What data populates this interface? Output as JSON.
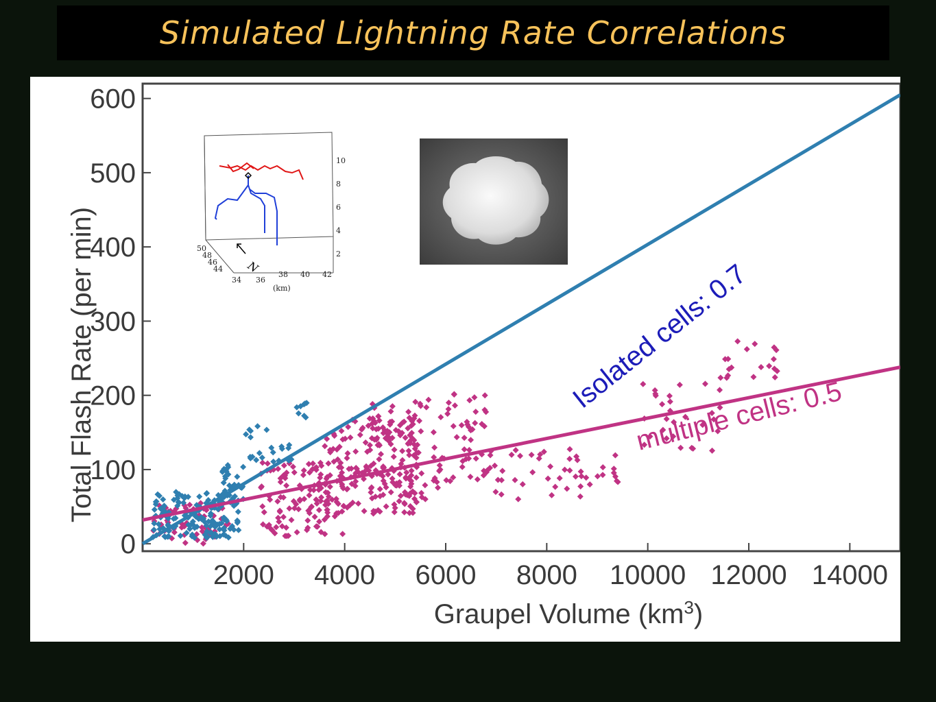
{
  "slide": {
    "title": "Simulated Lightning Rate Correlations"
  },
  "chart_data": {
    "type": "scatter",
    "title": "",
    "xlabel": "Graupel Volume (km",
    "xlabel_sup": "3",
    "xlabel_end": ")",
    "ylabel": "Total Flash Rate (per min)",
    "xlim": [
      0,
      15000
    ],
    "ylim": [
      -10,
      620
    ],
    "x_ticks": [
      "2000",
      "4000",
      "6000",
      "8000",
      "10000",
      "12000",
      "14000"
    ],
    "y_ticks": [
      "0",
      "100",
      "200",
      "300",
      "400",
      "500",
      "600"
    ],
    "grid": false,
    "series": [
      {
        "name": "Isolated cells",
        "color": "#2f7fb0",
        "fit_label": "Isolated cells: 0.7",
        "fit_label_color": "#1c1cb8",
        "fit_line": [
          [
            0,
            0
          ],
          [
            15000,
            605
          ]
        ],
        "clusters": [
          {
            "x": [
              200,
              1900
            ],
            "y": [
              8,
              70
            ],
            "n": 160
          },
          {
            "x": [
              1500,
              2000
            ],
            "y": [
              60,
              110
            ],
            "n": 30
          },
          {
            "x": [
              2000,
              3000
            ],
            "y": [
              110,
              160
            ],
            "n": 22
          },
          {
            "x": [
              3000,
              3300
            ],
            "y": [
              170,
              190
            ],
            "n": 8
          }
        ]
      },
      {
        "name": "Multiple cells",
        "color": "#c03384",
        "fit_label": "multiple cells: 0.5",
        "fit_label_color": "#c03384",
        "fit_line": [
          [
            0,
            32
          ],
          [
            15000,
            238
          ]
        ],
        "clusters": [
          {
            "x": [
              200,
              1700
            ],
            "y": [
              0,
              55
            ],
            "n": 60
          },
          {
            "x": [
              2300,
              4000
            ],
            "y": [
              10,
              110
            ],
            "n": 120
          },
          {
            "x": [
              3500,
              5500
            ],
            "y": [
              40,
              170
            ],
            "n": 170
          },
          {
            "x": [
              4500,
              6000
            ],
            "y": [
              60,
              200
            ],
            "n": 90
          },
          {
            "x": [
              6000,
              6800
            ],
            "y": [
              80,
              205
            ],
            "n": 40
          },
          {
            "x": [
              6800,
              9600
            ],
            "y": [
              60,
              130
            ],
            "n": 50
          },
          {
            "x": [
              9600,
              11500
            ],
            "y": [
              120,
              230
            ],
            "n": 30
          },
          {
            "x": [
              11500,
              12600
            ],
            "y": [
              220,
              275
            ],
            "n": 18
          }
        ]
      }
    ]
  },
  "inset_3d": {
    "z_ticks": [
      "10",
      "8",
      "6",
      "4",
      "2"
    ],
    "x_ticks": [
      "34",
      "36",
      "38",
      "40",
      "42"
    ],
    "y_ticks": [
      "50",
      "48",
      "46",
      "44"
    ],
    "unit": "(km)",
    "north": "N"
  },
  "inset_photo": {
    "description": "graupel particle photo"
  }
}
